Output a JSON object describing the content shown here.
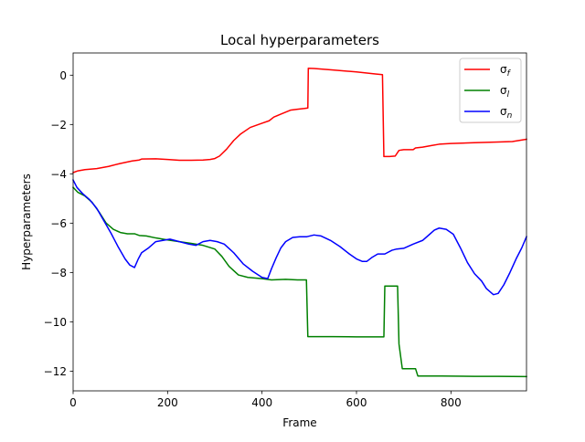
{
  "chart_data": {
    "type": "line",
    "title": "Local hyperparameters",
    "xlabel": "Frame",
    "ylabel": "Hyperparameters",
    "xlim": [
      0,
      960
    ],
    "ylim": [
      -12.8,
      0.9
    ],
    "xticks": [
      0,
      200,
      400,
      600,
      800
    ],
    "xtick_labels": [
      "0",
      "200",
      "400",
      "600",
      "800"
    ],
    "yticks": [
      0,
      -2,
      -4,
      -6,
      -8,
      -10,
      -12
    ],
    "ytick_labels": [
      "0",
      "−2",
      "−4",
      "−6",
      "−8",
      "−10",
      "−12"
    ],
    "grid": false,
    "legend_position": "top-right",
    "series": [
      {
        "name": "σf",
        "legend": {
          "base": "σ",
          "sub": "f"
        },
        "color": "#ff0000",
        "points": [
          [
            0,
            -3.95
          ],
          [
            10,
            -3.88
          ],
          [
            25,
            -3.83
          ],
          [
            50,
            -3.79
          ],
          [
            75,
            -3.7
          ],
          [
            100,
            -3.58
          ],
          [
            125,
            -3.48
          ],
          [
            140,
            -3.44
          ],
          [
            145,
            -3.4
          ],
          [
            175,
            -3.39
          ],
          [
            200,
            -3.42
          ],
          [
            225,
            -3.45
          ],
          [
            250,
            -3.45
          ],
          [
            275,
            -3.44
          ],
          [
            290,
            -3.42
          ],
          [
            300,
            -3.38
          ],
          [
            310,
            -3.28
          ],
          [
            325,
            -3.0
          ],
          [
            340,
            -2.65
          ],
          [
            355,
            -2.38
          ],
          [
            375,
            -2.12
          ],
          [
            400,
            -1.95
          ],
          [
            415,
            -1.85
          ],
          [
            425,
            -1.7
          ],
          [
            440,
            -1.58
          ],
          [
            460,
            -1.42
          ],
          [
            475,
            -1.38
          ],
          [
            490,
            -1.35
          ],
          [
            497,
            -1.33
          ],
          [
            498,
            0.28
          ],
          [
            510,
            0.27
          ],
          [
            550,
            0.21
          ],
          [
            600,
            0.13
          ],
          [
            640,
            0.05
          ],
          [
            655,
            0.02
          ],
          [
            658,
            -3.3
          ],
          [
            670,
            -3.3
          ],
          [
            682,
            -3.28
          ],
          [
            690,
            -3.05
          ],
          [
            700,
            -3.02
          ],
          [
            720,
            -3.02
          ],
          [
            725,
            -2.95
          ],
          [
            740,
            -2.92
          ],
          [
            760,
            -2.85
          ],
          [
            775,
            -2.8
          ],
          [
            800,
            -2.77
          ],
          [
            850,
            -2.74
          ],
          [
            900,
            -2.71
          ],
          [
            930,
            -2.69
          ],
          [
            960,
            -2.6
          ]
        ]
      },
      {
        "name": "σl",
        "legend": {
          "base": "σ",
          "sub": "l"
        },
        "color": "#008000",
        "points": [
          [
            0,
            -4.55
          ],
          [
            10,
            -4.75
          ],
          [
            25,
            -4.9
          ],
          [
            40,
            -5.15
          ],
          [
            55,
            -5.55
          ],
          [
            70,
            -6.0
          ],
          [
            85,
            -6.25
          ],
          [
            100,
            -6.38
          ],
          [
            115,
            -6.43
          ],
          [
            130,
            -6.43
          ],
          [
            140,
            -6.5
          ],
          [
            155,
            -6.52
          ],
          [
            175,
            -6.6
          ],
          [
            200,
            -6.68
          ],
          [
            225,
            -6.75
          ],
          [
            250,
            -6.82
          ],
          [
            275,
            -6.9
          ],
          [
            300,
            -7.05
          ],
          [
            315,
            -7.35
          ],
          [
            330,
            -7.75
          ],
          [
            350,
            -8.1
          ],
          [
            370,
            -8.2
          ],
          [
            400,
            -8.25
          ],
          [
            420,
            -8.3
          ],
          [
            450,
            -8.28
          ],
          [
            475,
            -8.3
          ],
          [
            494,
            -8.3
          ],
          [
            497,
            -10.6
          ],
          [
            550,
            -10.6
          ],
          [
            600,
            -10.61
          ],
          [
            658,
            -10.61
          ],
          [
            660,
            -8.55
          ],
          [
            687,
            -8.55
          ],
          [
            690,
            -10.9
          ],
          [
            697,
            -11.9
          ],
          [
            725,
            -11.9
          ],
          [
            730,
            -12.2
          ],
          [
            780,
            -12.2
          ],
          [
            850,
            -12.21
          ],
          [
            900,
            -12.21
          ],
          [
            960,
            -12.22
          ]
        ]
      },
      {
        "name": "σn",
        "legend": {
          "base": "σ",
          "sub": "n"
        },
        "color": "#0000ff",
        "points": [
          [
            0,
            -4.25
          ],
          [
            8,
            -4.55
          ],
          [
            20,
            -4.8
          ],
          [
            35,
            -5.05
          ],
          [
            50,
            -5.4
          ],
          [
            65,
            -5.9
          ],
          [
            80,
            -6.4
          ],
          [
            95,
            -6.95
          ],
          [
            110,
            -7.45
          ],
          [
            120,
            -7.7
          ],
          [
            130,
            -7.8
          ],
          [
            138,
            -7.45
          ],
          [
            145,
            -7.2
          ],
          [
            160,
            -7.0
          ],
          [
            175,
            -6.75
          ],
          [
            190,
            -6.7
          ],
          [
            205,
            -6.65
          ],
          [
            225,
            -6.75
          ],
          [
            245,
            -6.85
          ],
          [
            260,
            -6.9
          ],
          [
            275,
            -6.75
          ],
          [
            290,
            -6.7
          ],
          [
            305,
            -6.75
          ],
          [
            320,
            -6.85
          ],
          [
            340,
            -7.2
          ],
          [
            360,
            -7.65
          ],
          [
            380,
            -7.95
          ],
          [
            400,
            -8.2
          ],
          [
            412,
            -8.25
          ],
          [
            420,
            -7.85
          ],
          [
            430,
            -7.4
          ],
          [
            440,
            -7.0
          ],
          [
            450,
            -6.75
          ],
          [
            465,
            -6.58
          ],
          [
            480,
            -6.55
          ],
          [
            495,
            -6.55
          ],
          [
            510,
            -6.48
          ],
          [
            525,
            -6.52
          ],
          [
            545,
            -6.7
          ],
          [
            565,
            -6.95
          ],
          [
            585,
            -7.25
          ],
          [
            600,
            -7.45
          ],
          [
            612,
            -7.55
          ],
          [
            622,
            -7.55
          ],
          [
            632,
            -7.4
          ],
          [
            645,
            -7.25
          ],
          [
            660,
            -7.25
          ],
          [
            675,
            -7.1
          ],
          [
            685,
            -7.05
          ],
          [
            700,
            -7.02
          ],
          [
            720,
            -6.85
          ],
          [
            740,
            -6.7
          ],
          [
            755,
            -6.45
          ],
          [
            765,
            -6.28
          ],
          [
            775,
            -6.2
          ],
          [
            790,
            -6.25
          ],
          [
            805,
            -6.45
          ],
          [
            820,
            -7.0
          ],
          [
            835,
            -7.6
          ],
          [
            850,
            -8.05
          ],
          [
            865,
            -8.35
          ],
          [
            875,
            -8.65
          ],
          [
            890,
            -8.9
          ],
          [
            900,
            -8.85
          ],
          [
            912,
            -8.5
          ],
          [
            925,
            -8.0
          ],
          [
            938,
            -7.45
          ],
          [
            950,
            -7.0
          ],
          [
            960,
            -6.55
          ]
        ]
      }
    ]
  }
}
